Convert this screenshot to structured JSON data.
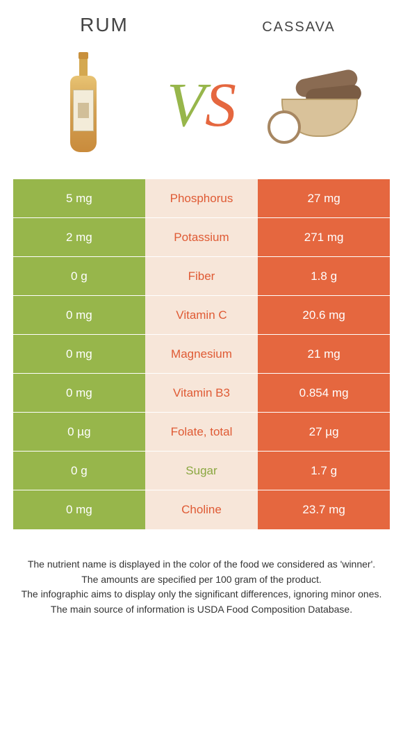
{
  "colors": {
    "left_col": "#97b64b",
    "right_col": "#e5673f",
    "mid_bg": "#f7e6d9",
    "nutrient_winner_left": "#8aa740",
    "nutrient_winner_right": "#df5a34"
  },
  "header": {
    "left_title": "RUM",
    "right_title": "cassava",
    "vs_v": "V",
    "vs_s": "S"
  },
  "rows": [
    {
      "left": "5 mg",
      "label": "Phosphorus",
      "right": "27 mg",
      "winner": "right"
    },
    {
      "left": "2 mg",
      "label": "Potassium",
      "right": "271 mg",
      "winner": "right"
    },
    {
      "left": "0 g",
      "label": "Fiber",
      "right": "1.8 g",
      "winner": "right"
    },
    {
      "left": "0 mg",
      "label": "Vitamin C",
      "right": "20.6 mg",
      "winner": "right"
    },
    {
      "left": "0 mg",
      "label": "Magnesium",
      "right": "21 mg",
      "winner": "right"
    },
    {
      "left": "0 mg",
      "label": "Vitamin B3",
      "right": "0.854 mg",
      "winner": "right"
    },
    {
      "left": "0 µg",
      "label": "Folate, total",
      "right": "27 µg",
      "winner": "right"
    },
    {
      "left": "0 g",
      "label": "Sugar",
      "right": "1.7 g",
      "winner": "left"
    },
    {
      "left": "0 mg",
      "label": "Choline",
      "right": "23.7 mg",
      "winner": "right"
    }
  ],
  "footnotes": [
    "The nutrient name is displayed in the color of the food we considered as 'winner'.",
    "The amounts are specified per 100 gram of the product.",
    "The infographic aims to display only the significant differences, ignoring minor ones.",
    "The main source of information is USDA Food Composition Database."
  ]
}
